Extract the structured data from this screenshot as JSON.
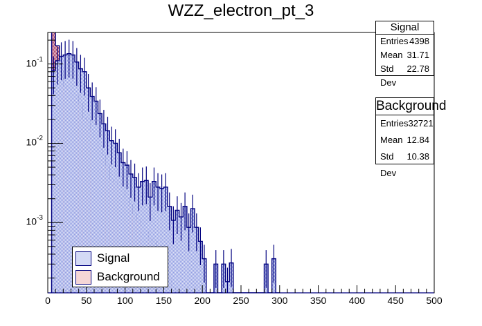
{
  "chart_data": {
    "type": "histogram",
    "title": "WZZ_electron_pt_3",
    "xlabel": "",
    "ylabel": "",
    "xlim": [
      0,
      500
    ],
    "ylim": [
      0.00013,
      0.25
    ],
    "yscale": "log",
    "bin_width": 5,
    "x_ticks": [
      "0",
      "50",
      "100",
      "150",
      "200",
      "250",
      "300",
      "350",
      "400",
      "450",
      "500"
    ],
    "y_ticks": [
      {
        "base": "10",
        "exp": "-1",
        "value": 0.1
      },
      {
        "base": "10",
        "exp": "-2",
        "value": 0.01
      },
      {
        "base": "10",
        "exp": "-3",
        "value": 0.001
      }
    ],
    "legend": {
      "position": "bottom-left",
      "entries": [
        "Signal",
        "Background"
      ]
    },
    "series": [
      {
        "name": "Background",
        "fill": "#f3c8c8",
        "hatch": "#a0305a",
        "line": "#00007f",
        "bin_start": 5,
        "values": [
          0.35,
          0.17,
          0.083,
          0.053,
          0.05,
          0.041,
          0.041,
          0.032,
          0.021,
          0.02,
          0.0149,
          0.0117,
          0.0092,
          0.0071,
          0.0053,
          0.0035,
          0.0033,
          0.003,
          0.0026,
          0.0021,
          0.0017,
          0.0013,
          0.0011,
          0.00096,
          0.00078,
          0.00063,
          0.00058,
          0.00048,
          0.00035,
          0.00032,
          0.0002,
          0.00015,
          0,
          0,
          0,
          0,
          0,
          0,
          0,
          0
        ]
      },
      {
        "name": "Signal",
        "fill": "#c8d0f0",
        "hatch": "#3344cc",
        "line": "#00007f",
        "bin_start": 5,
        "values": [
          0.083,
          0.11,
          0.125,
          0.13,
          0.135,
          0.13,
          0.106,
          0.087,
          0.08,
          0.05,
          0.039,
          0.034,
          0.0237,
          0.0176,
          0.0144,
          0.0108,
          0.01,
          0.0076,
          0.0057,
          0.0053,
          0.0041,
          0.0037,
          0.0028,
          0.0033,
          0.0034,
          0.0021,
          0.0033,
          0.0028,
          0.0027,
          0.0028,
          0.0016,
          0.00107,
          0.00143,
          0.00118,
          0.0016,
          0.00087,
          0.0015,
          0.00087,
          0.00058,
          0.00035,
          0,
          0,
          0.0003,
          0,
          0.0003,
          0.00018,
          0.00031,
          0,
          0,
          0,
          0,
          0,
          0,
          0,
          0,
          0.0003,
          0,
          0.00035,
          0
        ],
        "errors_rel": 0.5
      }
    ]
  },
  "stats": {
    "signal": {
      "title": "Signal",
      "rows": [
        {
          "label": "Entries",
          "value": "4398"
        },
        {
          "label": "Mean",
          "value": "31.71"
        },
        {
          "label": "Std Dev",
          "value": "22.78"
        }
      ]
    },
    "background": {
      "title": "Background",
      "rows": [
        {
          "label": "Entries",
          "value": "32721"
        },
        {
          "label": "Mean",
          "value": "12.84"
        },
        {
          "label": "Std Dev",
          "value": "10.38"
        }
      ]
    }
  }
}
